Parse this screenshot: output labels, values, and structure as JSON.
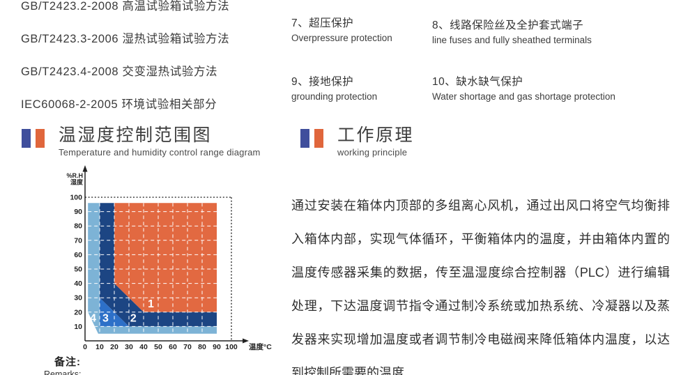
{
  "standards": {
    "items": [
      "GB/T2423.2-2008 高温试验箱试验方法",
      "GB/T2423.3-2006 湿热试验箱试验方法",
      "GB/T2423.4-2008 交变湿热试验方法",
      "IEC60068-2-2005 环境试验相关部分"
    ]
  },
  "protections": {
    "items": [
      {
        "zh": "7、超压保护",
        "en": "Overpressure protection"
      },
      {
        "zh": "8、线路保险丝及全护套式端子",
        "en": "line fuses and fully sheathed terminals"
      },
      {
        "zh": "9、接地保护",
        "en": "grounding protection"
      },
      {
        "zh": "10、缺水缺气保护",
        "en": "Water shortage and gas shortage protection"
      }
    ]
  },
  "section_left": {
    "title": "温湿度控制范围图",
    "subtitle": "Temperature and humidity control range diagram"
  },
  "section_right": {
    "title": "工作原理",
    "subtitle": "working principle"
  },
  "remarks": {
    "zh": "备注:",
    "en": "Remarks:"
  },
  "principle": {
    "lines": [
      "通过安装在箱体内顶部的多组离心风机，通过出风口将空气均衡排",
      "入箱体内部，实现气体循环，平衡箱体内的温度，并由箱体内置的",
      "温度传感器采集的数据，传至温湿度综合控制器（PLC）进行编辑",
      "处理，下达温度调节指令通过制冷系统或加热系统、冷凝器以及蒸",
      "发器来实现增加温度或者调节制冷电磁阀来降低箱体内温度，以达",
      "到控制所需要的温度"
    ]
  },
  "colors": {
    "accent_blue": "#3f4e9c",
    "accent_orange": "#e0663c",
    "region_orange": "#e26941",
    "region_navy": "#1c4583",
    "region_blue": "#2d70c8",
    "region_lightblue": "#7db3d6"
  },
  "chart_data": {
    "type": "area",
    "title": "温湿度控制范围图",
    "xlabel": "温度°C",
    "ylabel": "%R.H 湿度",
    "ylabel_lines": [
      "%R.H",
      "湿度"
    ],
    "xlim": [
      0,
      100
    ],
    "ylim": [
      0,
      100
    ],
    "x_ticks": [
      0,
      10,
      20,
      30,
      40,
      50,
      60,
      70,
      80,
      90,
      100
    ],
    "y_ticks": [
      10,
      20,
      30,
      40,
      50,
      60,
      70,
      80,
      90,
      100
    ],
    "grid": true,
    "dotted_guides": {
      "humidity": 100,
      "temperature": 100
    },
    "regions": [
      {
        "label": "1",
        "color": "#e26941",
        "points": [
          [
            20,
            96
          ],
          [
            90,
            96
          ],
          [
            90,
            20
          ],
          [
            40,
            20
          ],
          [
            20,
            40
          ]
        ]
      },
      {
        "label": "2",
        "color": "#1c4583",
        "points": [
          [
            10,
            96
          ],
          [
            20,
            96
          ],
          [
            20,
            40
          ],
          [
            40,
            20
          ],
          [
            90,
            20
          ],
          [
            90,
            10
          ],
          [
            30,
            10
          ],
          [
            10,
            30
          ]
        ]
      },
      {
        "label": "3",
        "color": "#2d70c8",
        "points": [
          [
            10,
            30
          ],
          [
            30,
            10
          ],
          [
            10,
            10
          ]
        ]
      },
      {
        "label": "4",
        "color": "#7db3d6",
        "points": [
          [
            2,
            96
          ],
          [
            10,
            96
          ],
          [
            10,
            10
          ],
          [
            90,
            10
          ],
          [
            90,
            5
          ],
          [
            9,
            5
          ],
          [
            2,
            20
          ]
        ]
      }
    ],
    "label_positions": {
      "1": [
        45,
        26
      ],
      "2": [
        33,
        16
      ],
      "3": [
        14,
        16
      ],
      "4": [
        5.5,
        16
      ]
    }
  }
}
